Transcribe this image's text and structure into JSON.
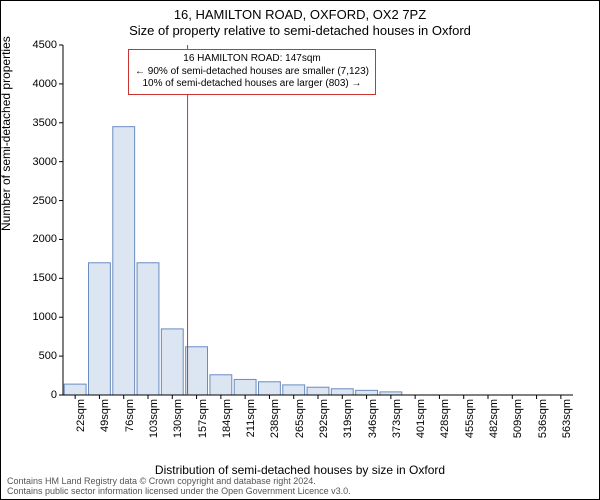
{
  "chart": {
    "type": "histogram",
    "title_line1": "16, HAMILTON ROAD, OXFORD, OX2 7PZ",
    "title_line2": "Size of property relative to semi-detached houses in Oxford",
    "y_axis_label": "Number of semi-detached properties",
    "x_axis_label": "Distribution of semi-detached houses by size in Oxford",
    "ylim": [
      0,
      4500
    ],
    "ytick_step": 500,
    "yticks": [
      0,
      500,
      1000,
      1500,
      2000,
      2500,
      3000,
      3500,
      4000,
      4500
    ],
    "x_bins": [
      22,
      49,
      76,
      103,
      130,
      157,
      184,
      211,
      238,
      265,
      292,
      319,
      346,
      373,
      401,
      428,
      455,
      482,
      509,
      536,
      563
    ],
    "x_label_suffix": "sqm",
    "bar_values": [
      140,
      1700,
      3450,
      1700,
      850,
      620,
      260,
      200,
      170,
      130,
      100,
      80,
      60,
      40,
      0,
      0,
      0,
      0,
      0,
      0,
      0
    ],
    "bar_fill": "#dce6f2",
    "bar_stroke": "#6a8bbf",
    "background_color": "#ffffff",
    "axis_color": "#000000",
    "tick_color": "#000000",
    "marker_line_x": 147,
    "marker_line_color": "#cc3333",
    "annotation": {
      "lines": [
        "16 HAMILTON ROAD: 147sqm",
        "← 90% of semi-detached houses are smaller (7,123)",
        "10% of semi-detached houses are larger (803) →"
      ],
      "border_color": "#cc3333"
    },
    "title_fontsize": 13,
    "axis_label_fontsize": 12,
    "tick_fontsize": 11,
    "annotation_fontsize": 10
  },
  "footer": {
    "line1": "Contains HM Land Registry data © Crown copyright and database right 2024.",
    "line2": "Contains public sector information licensed under the Open Government Licence v3.0."
  }
}
